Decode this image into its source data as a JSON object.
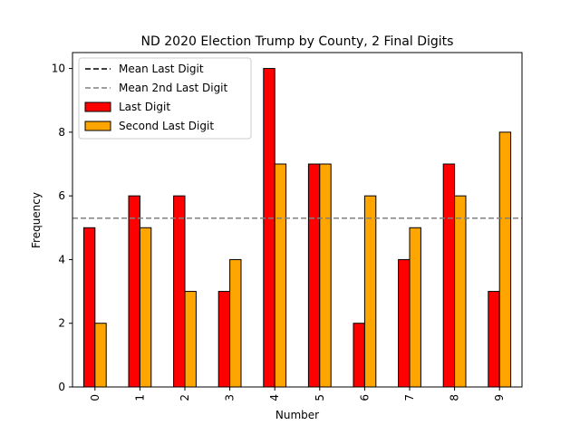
{
  "chart_data": {
    "type": "bar",
    "title": "ND 2020 Election Trump by County, 2 Final Digits",
    "xlabel": "Number",
    "ylabel": "Frequency",
    "categories": [
      "0",
      "1",
      "2",
      "3",
      "4",
      "5",
      "6",
      "7",
      "8",
      "9"
    ],
    "series": [
      {
        "name": "Last Digit",
        "color": "#ff0000",
        "values": [
          5,
          6,
          6,
          3,
          10,
          7,
          2,
          4,
          7,
          3
        ]
      },
      {
        "name": "Second Last Digit",
        "color": "#ffa500",
        "values": [
          2,
          5,
          3,
          4,
          7,
          7,
          6,
          5,
          6,
          8
        ]
      }
    ],
    "reference_lines": [
      {
        "name": "Mean Last Digit",
        "value": 5.3,
        "color": "#000000",
        "style": "dashed"
      },
      {
        "name": "Mean 2nd Last Digit",
        "value": 5.3,
        "color": "#808080",
        "style": "dashed"
      }
    ],
    "ylim": [
      0,
      10.5
    ],
    "yticks": [
      0,
      2,
      4,
      6,
      8,
      10
    ],
    "grid": false,
    "legend_position": "top-left"
  }
}
